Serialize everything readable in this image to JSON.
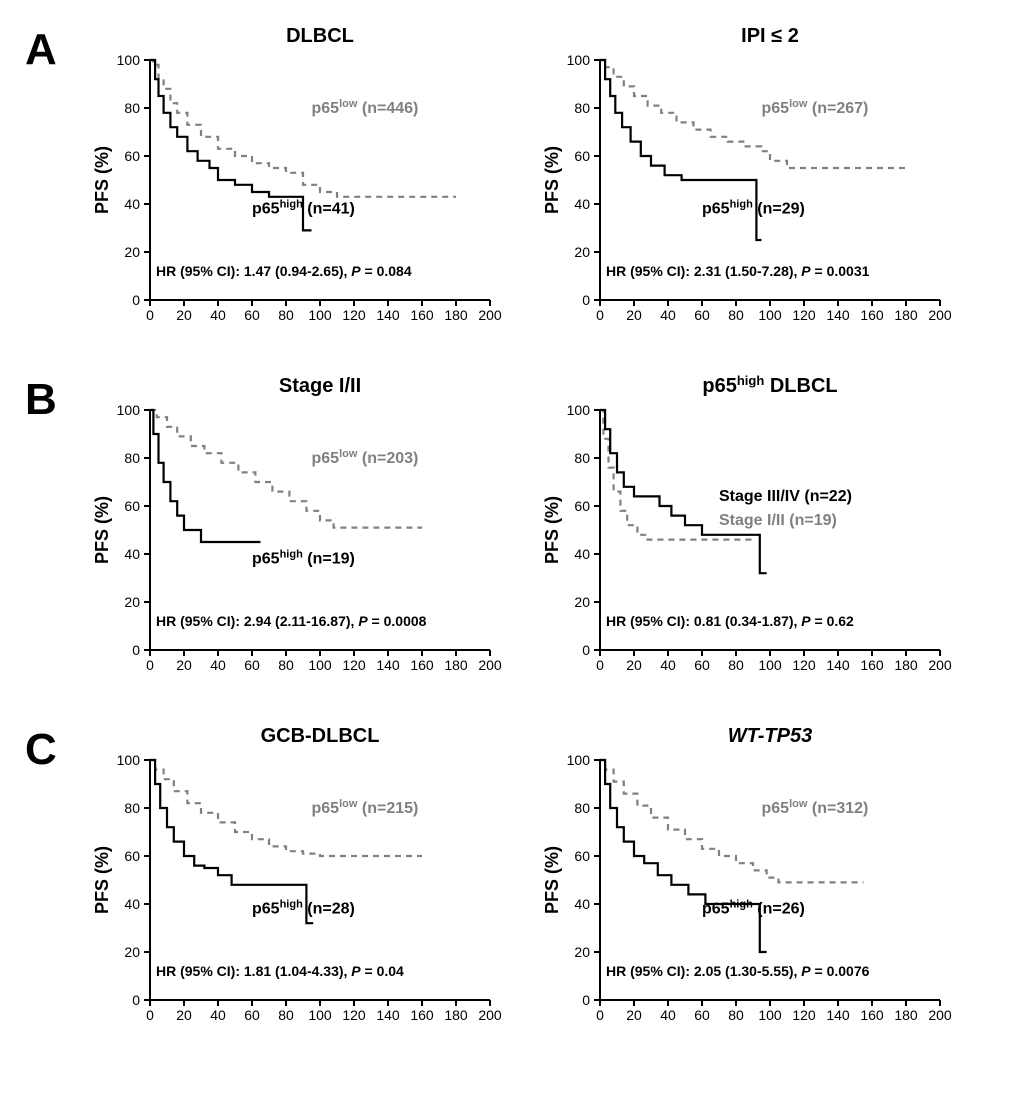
{
  "colors": {
    "low": "#808080",
    "high": "#000000",
    "bg": "#ffffff",
    "axis": "#000000"
  },
  "x_axis": {
    "min": 0,
    "max": 200,
    "ticks": [
      0,
      20,
      40,
      60,
      80,
      100,
      120,
      140,
      160,
      180,
      200
    ]
  },
  "y_axis": {
    "label": "PFS (%)",
    "min": 0,
    "max": 100,
    "ticks": [
      0,
      20,
      40,
      60,
      80,
      100
    ]
  },
  "panels": [
    {
      "label": "A",
      "charts": [
        {
          "title": "DLBCL",
          "low_label_prefix": "p65",
          "low_label_sup": "low",
          "low_n": "(n=446)",
          "high_label_prefix": "p65",
          "high_label_sup": "high",
          "high_n": "(n=41)",
          "hr_text": "HR (95% CI): 1.47 (0.94-2.65), ",
          "p_text": "P",
          "p_val": " = 0.084",
          "low_points": [
            [
              0,
              100
            ],
            [
              2,
              98
            ],
            [
              5,
              92
            ],
            [
              8,
              88
            ],
            [
              12,
              82
            ],
            [
              16,
              78
            ],
            [
              22,
              73
            ],
            [
              30,
              68
            ],
            [
              40,
              63
            ],
            [
              50,
              60
            ],
            [
              60,
              57
            ],
            [
              70,
              55
            ],
            [
              80,
              53
            ],
            [
              90,
              48
            ],
            [
              100,
              45
            ],
            [
              110,
              43
            ],
            [
              120,
              43
            ],
            [
              140,
              43
            ],
            [
              160,
              43
            ],
            [
              180,
              43
            ]
          ],
          "high_points": [
            [
              0,
              100
            ],
            [
              3,
              92
            ],
            [
              5,
              85
            ],
            [
              8,
              78
            ],
            [
              12,
              72
            ],
            [
              16,
              68
            ],
            [
              22,
              62
            ],
            [
              28,
              58
            ],
            [
              35,
              55
            ],
            [
              40,
              50
            ],
            [
              50,
              48
            ],
            [
              60,
              45
            ],
            [
              70,
              43
            ],
            [
              80,
              43
            ],
            [
              88,
              43
            ],
            [
              90,
              29
            ],
            [
              95,
              29
            ]
          ]
        },
        {
          "title": "IPI ≤ 2",
          "low_label_prefix": "p65",
          "low_label_sup": "low",
          "low_n": "(n=267)",
          "high_label_prefix": "p65",
          "high_label_sup": "high",
          "high_n": "(n=29)",
          "hr_text": "HR (95% CI): 2.31 (1.50-7.28), ",
          "p_text": "P",
          "p_val": " = 0.0031",
          "low_points": [
            [
              0,
              100
            ],
            [
              3,
              97
            ],
            [
              8,
              93
            ],
            [
              14,
              89
            ],
            [
              20,
              85
            ],
            [
              28,
              81
            ],
            [
              36,
              78
            ],
            [
              45,
              74
            ],
            [
              55,
              71
            ],
            [
              65,
              68
            ],
            [
              75,
              66
            ],
            [
              85,
              64
            ],
            [
              95,
              62
            ],
            [
              100,
              58
            ],
            [
              110,
              55
            ],
            [
              120,
              55
            ],
            [
              140,
              55
            ],
            [
              160,
              55
            ],
            [
              180,
              55
            ]
          ],
          "high_points": [
            [
              0,
              100
            ],
            [
              3,
              92
            ],
            [
              6,
              85
            ],
            [
              9,
              78
            ],
            [
              13,
              72
            ],
            [
              18,
              66
            ],
            [
              24,
              60
            ],
            [
              30,
              56
            ],
            [
              38,
              52
            ],
            [
              48,
              50
            ],
            [
              60,
              50
            ],
            [
              75,
              50
            ],
            [
              88,
              50
            ],
            [
              92,
              25
            ],
            [
              95,
              25
            ]
          ]
        }
      ]
    },
    {
      "label": "B",
      "charts": [
        {
          "title": "Stage I/II",
          "low_label_prefix": "p65",
          "low_label_sup": "low",
          "low_n": "(n=203)",
          "high_label_prefix": "p65",
          "high_label_sup": "high",
          "high_n": "(n=19)",
          "hr_text": "HR (95% CI): 2.94 (2.11-16.87), ",
          "p_text": "P",
          "p_val": " = 0.0008",
          "low_points": [
            [
              0,
              100
            ],
            [
              4,
              97
            ],
            [
              10,
              93
            ],
            [
              16,
              89
            ],
            [
              24,
              85
            ],
            [
              32,
              82
            ],
            [
              42,
              78
            ],
            [
              52,
              74
            ],
            [
              62,
              70
            ],
            [
              72,
              66
            ],
            [
              82,
              62
            ],
            [
              92,
              58
            ],
            [
              100,
              54
            ],
            [
              108,
              51
            ],
            [
              118,
              51
            ],
            [
              140,
              51
            ],
            [
              160,
              51
            ]
          ],
          "high_points": [
            [
              0,
              100
            ],
            [
              2,
              90
            ],
            [
              5,
              78
            ],
            [
              8,
              70
            ],
            [
              12,
              62
            ],
            [
              16,
              56
            ],
            [
              20,
              50
            ],
            [
              25,
              50
            ],
            [
              30,
              45
            ],
            [
              38,
              45
            ],
            [
              45,
              45
            ],
            [
              55,
              45
            ],
            [
              65,
              45
            ]
          ]
        },
        {
          "title_html": "p65|high| DLBCL",
          "custom_legend": true,
          "series1_label": "Stage III/IV (n=22)",
          "series2_label": "Stage I/II (n=19)",
          "hr_text": "HR (95% CI): 0.81 (0.34-1.87), ",
          "p_text": "P",
          "p_val": " = 0.62",
          "low_points": [
            [
              0,
              100
            ],
            [
              2,
              88
            ],
            [
              5,
              76
            ],
            [
              8,
              66
            ],
            [
              12,
              58
            ],
            [
              16,
              52
            ],
            [
              22,
              48
            ],
            [
              28,
              46
            ],
            [
              35,
              46
            ],
            [
              45,
              46
            ],
            [
              55,
              46
            ],
            [
              65,
              46
            ],
            [
              80,
              46
            ],
            [
              92,
              46
            ]
          ],
          "high_points": [
            [
              0,
              100
            ],
            [
              3,
              92
            ],
            [
              6,
              82
            ],
            [
              10,
              74
            ],
            [
              14,
              68
            ],
            [
              20,
              64
            ],
            [
              28,
              64
            ],
            [
              35,
              60
            ],
            [
              42,
              56
            ],
            [
              50,
              52
            ],
            [
              60,
              48
            ],
            [
              70,
              48
            ],
            [
              80,
              48
            ],
            [
              90,
              48
            ],
            [
              94,
              32
            ],
            [
              98,
              32
            ]
          ]
        }
      ]
    },
    {
      "label": "C",
      "charts": [
        {
          "title": "GCB-DLBCL",
          "low_label_prefix": "p65",
          "low_label_sup": "low",
          "low_n": "(n=215)",
          "high_label_prefix": "p65",
          "high_label_sup": "high",
          "high_n": "(n=28)",
          "hr_text": "HR (95% CI): 1.81 (1.04-4.33), ",
          "p_text": "P",
          "p_val": " = 0.04",
          "low_points": [
            [
              0,
              100
            ],
            [
              3,
              96
            ],
            [
              8,
              92
            ],
            [
              14,
              87
            ],
            [
              22,
              82
            ],
            [
              30,
              78
            ],
            [
              40,
              74
            ],
            [
              50,
              70
            ],
            [
              60,
              67
            ],
            [
              70,
              64
            ],
            [
              80,
              62
            ],
            [
              90,
              61
            ],
            [
              100,
              60
            ],
            [
              120,
              60
            ],
            [
              140,
              60
            ],
            [
              160,
              60
            ]
          ],
          "high_points": [
            [
              0,
              100
            ],
            [
              3,
              90
            ],
            [
              6,
              80
            ],
            [
              10,
              72
            ],
            [
              14,
              66
            ],
            [
              20,
              60
            ],
            [
              26,
              56
            ],
            [
              32,
              55
            ],
            [
              40,
              52
            ],
            [
              48,
              48
            ],
            [
              58,
              48
            ],
            [
              70,
              48
            ],
            [
              80,
              48
            ],
            [
              88,
              48
            ],
            [
              92,
              32
            ],
            [
              96,
              32
            ]
          ]
        },
        {
          "title_italic": "WT-TP53",
          "low_label_prefix": "p65",
          "low_label_sup": "low",
          "low_n": "(n=312)",
          "high_label_prefix": "p65",
          "high_label_sup": "high",
          "high_n": "(n=26)",
          "hr_text": "HR (95% CI): 2.05 (1.30-5.55), ",
          "p_text": "P",
          "p_val": " = 0.0076",
          "low_points": [
            [
              0,
              100
            ],
            [
              3,
              96
            ],
            [
              8,
              91
            ],
            [
              14,
              86
            ],
            [
              22,
              81
            ],
            [
              30,
              76
            ],
            [
              40,
              71
            ],
            [
              50,
              67
            ],
            [
              60,
              63
            ],
            [
              70,
              60
            ],
            [
              80,
              57
            ],
            [
              90,
              54
            ],
            [
              98,
              51
            ],
            [
              105,
              49
            ],
            [
              115,
              49
            ],
            [
              135,
              49
            ],
            [
              155,
              49
            ]
          ],
          "high_points": [
            [
              0,
              100
            ],
            [
              3,
              90
            ],
            [
              6,
              80
            ],
            [
              10,
              72
            ],
            [
              14,
              66
            ],
            [
              20,
              60
            ],
            [
              26,
              57
            ],
            [
              34,
              52
            ],
            [
              42,
              48
            ],
            [
              52,
              44
            ],
            [
              62,
              40
            ],
            [
              72,
              40
            ],
            [
              82,
              40
            ],
            [
              90,
              40
            ],
            [
              94,
              20
            ],
            [
              98,
              20
            ]
          ]
        }
      ]
    }
  ]
}
